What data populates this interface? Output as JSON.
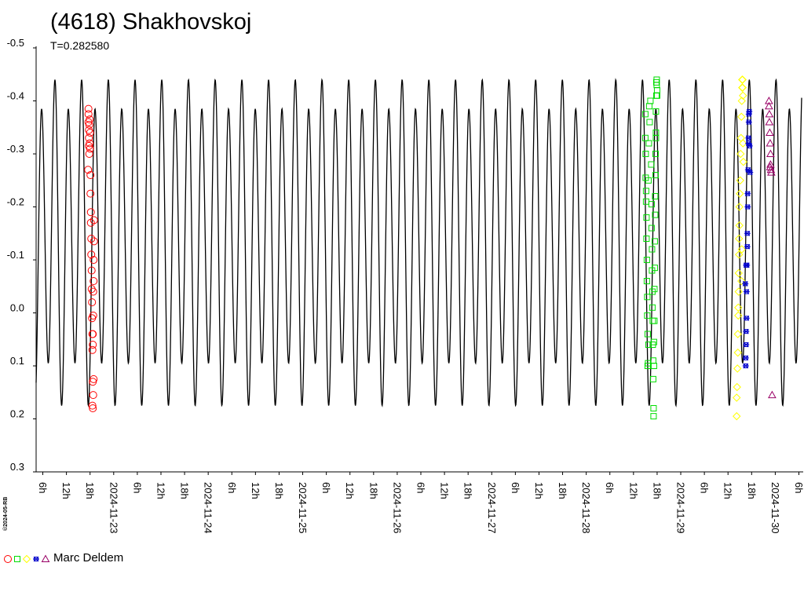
{
  "chart_data": {
    "type": "scatter",
    "title": "(4618) Shakhovskoj",
    "subtitle": "T=0.282580",
    "copyright": "©2024-05-RB",
    "period_days": 0.28258,
    "x_unit": "hours since 2024-11-22T00:00",
    "xlim": [
      4.3,
      198.7
    ],
    "ylim": [
      -0.5,
      0.3
    ],
    "y_inverted": true,
    "y_ticks": [
      {
        "v": -0.5,
        "label": "-0.5"
      },
      {
        "v": -0.4,
        "label": "-0.4"
      },
      {
        "v": -0.3,
        "label": "-0.3"
      },
      {
        "v": -0.2,
        "label": "-0.2"
      },
      {
        "v": -0.1,
        "label": "-0.1"
      },
      {
        "v": 0.0,
        "label": "0.0"
      },
      {
        "v": 0.1,
        "label": "0.1"
      },
      {
        "v": 0.2,
        "label": "0.2"
      },
      {
        "v": 0.3,
        "label": "0.3"
      }
    ],
    "x_ticks": [
      {
        "h": 6,
        "label": "6h"
      },
      {
        "h": 12,
        "label": "12h"
      },
      {
        "h": 18,
        "label": "18h"
      },
      {
        "h": 24,
        "label": "2024-11-23"
      },
      {
        "h": 30,
        "label": "6h"
      },
      {
        "h": 36,
        "label": "12h"
      },
      {
        "h": 42,
        "label": "18h"
      },
      {
        "h": 48,
        "label": "2024-11-24"
      },
      {
        "h": 54,
        "label": "6h"
      },
      {
        "h": 60,
        "label": "12h"
      },
      {
        "h": 66,
        "label": "18h"
      },
      {
        "h": 72,
        "label": "2024-11-25"
      },
      {
        "h": 78,
        "label": "6h"
      },
      {
        "h": 84,
        "label": "12h"
      },
      {
        "h": 90,
        "label": "18h"
      },
      {
        "h": 96,
        "label": "2024-11-26"
      },
      {
        "h": 102,
        "label": "6h"
      },
      {
        "h": 108,
        "label": "12h"
      },
      {
        "h": 114,
        "label": "18h"
      },
      {
        "h": 120,
        "label": "2024-11-27"
      },
      {
        "h": 126,
        "label": "6h"
      },
      {
        "h": 132,
        "label": "12h"
      },
      {
        "h": 138,
        "label": "18h"
      },
      {
        "h": 144,
        "label": "2024-11-28"
      },
      {
        "h": 150,
        "label": "6h"
      },
      {
        "h": 156,
        "label": "12h"
      },
      {
        "h": 162,
        "label": "18h"
      },
      {
        "h": 168,
        "label": "2024-11-29"
      },
      {
        "h": 174,
        "label": "6h"
      },
      {
        "h": 180,
        "label": "12h"
      },
      {
        "h": 186,
        "label": "18h"
      },
      {
        "h": 192,
        "label": "2024-11-30"
      },
      {
        "h": 198,
        "label": "6h"
      }
    ],
    "model_curve": {
      "color": "#000000",
      "maxima": [
        -0.44,
        -0.385
      ],
      "minima": [
        0.175,
        0.095
      ],
      "phase_offset_hours": 2.3
    },
    "series": [
      {
        "name": "",
        "color": "#ff0000",
        "marker": "circle",
        "points": [
          [
            17.6,
            -0.385
          ],
          [
            17.6,
            -0.375
          ],
          [
            17.6,
            -0.36
          ],
          [
            17.7,
            -0.345
          ],
          [
            17.7,
            -0.33
          ],
          [
            17.7,
            -0.315
          ],
          [
            17.8,
            -0.3
          ],
          [
            17.5,
            -0.27
          ],
          [
            17.8,
            -0.355
          ],
          [
            17.9,
            -0.32
          ],
          [
            17.9,
            -0.365
          ],
          [
            18.0,
            -0.34
          ],
          [
            18.0,
            -0.31
          ],
          [
            18.1,
            -0.26
          ],
          [
            18.1,
            -0.225
          ],
          [
            18.2,
            -0.19
          ],
          [
            18.2,
            -0.17
          ],
          [
            18.3,
            -0.14
          ],
          [
            18.3,
            -0.11
          ],
          [
            18.4,
            -0.08
          ],
          [
            18.4,
            -0.045
          ],
          [
            18.5,
            -0.02
          ],
          [
            18.5,
            0.01
          ],
          [
            18.6,
            0.04
          ],
          [
            18.6,
            0.07
          ],
          [
            18.7,
            0.06
          ],
          [
            18.7,
            0.04
          ],
          [
            18.8,
            0.005
          ],
          [
            18.8,
            -0.04
          ],
          [
            18.9,
            -0.06
          ],
          [
            18.9,
            -0.1
          ],
          [
            19.0,
            -0.135
          ],
          [
            19.0,
            -0.175
          ],
          [
            18.7,
            0.13
          ],
          [
            18.8,
            0.155
          ],
          [
            18.6,
            0.175
          ],
          [
            18.7,
            0.18
          ],
          [
            18.9,
            0.125
          ]
        ]
      },
      {
        "name": "",
        "color": "#00dd00",
        "marker": "square",
        "points": [
          [
            159.0,
            -0.375
          ],
          [
            159.0,
            -0.33
          ],
          [
            159.1,
            -0.3
          ],
          [
            159.1,
            -0.255
          ],
          [
            159.2,
            -0.23
          ],
          [
            159.2,
            -0.21
          ],
          [
            159.3,
            -0.18
          ],
          [
            159.3,
            -0.14
          ],
          [
            159.4,
            -0.1
          ],
          [
            159.4,
            -0.06
          ],
          [
            159.5,
            -0.03
          ],
          [
            159.5,
            0.005
          ],
          [
            159.6,
            0.04
          ],
          [
            159.6,
            0.1
          ],
          [
            159.7,
            0.095
          ],
          [
            159.8,
            0.06
          ],
          [
            159.8,
            -0.25
          ],
          [
            159.9,
            -0.32
          ],
          [
            160.0,
            -0.39
          ],
          [
            160.1,
            -0.36
          ],
          [
            160.3,
            -0.4
          ],
          [
            160.5,
            -0.28
          ],
          [
            160.6,
            -0.205
          ],
          [
            160.6,
            -0.16
          ],
          [
            160.7,
            -0.12
          ],
          [
            160.7,
            -0.08
          ],
          [
            160.8,
            -0.04
          ],
          [
            160.8,
            -0.01
          ],
          [
            160.9,
            0.015
          ],
          [
            160.9,
            0.06
          ],
          [
            161.0,
            0.09
          ],
          [
            161.0,
            0.125
          ],
          [
            161.1,
            0.18
          ],
          [
            161.1,
            0.195
          ],
          [
            161.2,
            0.1
          ],
          [
            161.2,
            0.055
          ],
          [
            161.3,
            0.015
          ],
          [
            161.3,
            -0.045
          ],
          [
            161.4,
            -0.085
          ],
          [
            161.4,
            -0.135
          ],
          [
            161.5,
            -0.185
          ],
          [
            161.5,
            -0.22
          ],
          [
            161.6,
            -0.26
          ],
          [
            161.6,
            -0.3
          ],
          [
            161.7,
            -0.34
          ],
          [
            161.7,
            -0.38
          ],
          [
            161.8,
            -0.41
          ],
          [
            161.8,
            -0.435
          ],
          [
            161.9,
            -0.44
          ],
          [
            161.9,
            -0.43
          ],
          [
            162.0,
            -0.42
          ],
          [
            162.0,
            -0.41
          ],
          [
            161.7,
            -0.33
          ]
        ]
      },
      {
        "name": "",
        "color": "#ffff00",
        "marker": "diamond",
        "points": [
          [
            182.2,
            0.195
          ],
          [
            182.2,
            0.16
          ],
          [
            182.3,
            0.14
          ],
          [
            182.4,
            0.105
          ],
          [
            182.5,
            0.075
          ],
          [
            182.5,
            0.04
          ],
          [
            182.6,
            0.005
          ],
          [
            182.6,
            -0.01
          ],
          [
            182.7,
            -0.04
          ],
          [
            182.7,
            -0.075
          ],
          [
            182.8,
            -0.11
          ],
          [
            182.8,
            -0.14
          ],
          [
            182.9,
            -0.165
          ],
          [
            182.9,
            -0.2
          ],
          [
            183.0,
            -0.225
          ],
          [
            183.1,
            -0.25
          ],
          [
            183.2,
            -0.3
          ],
          [
            183.3,
            -0.33
          ],
          [
            183.4,
            -0.37
          ],
          [
            183.5,
            -0.4
          ],
          [
            183.6,
            -0.425
          ],
          [
            183.6,
            -0.44
          ],
          [
            183.7,
            -0.44
          ],
          [
            183.7,
            -0.425
          ],
          [
            183.8,
            -0.41
          ],
          [
            183.8,
            -0.32
          ],
          [
            183.9,
            -0.285
          ],
          [
            183.5,
            -0.12
          ],
          [
            183.4,
            -0.06
          ]
        ]
      },
      {
        "name": "",
        "color": "#0000cc",
        "marker": "star",
        "points": [
          [
            184.5,
            0.1
          ],
          [
            184.5,
            0.085
          ],
          [
            184.6,
            0.06
          ],
          [
            184.6,
            0.035
          ],
          [
            184.7,
            0.01
          ],
          [
            184.7,
            -0.04
          ],
          [
            184.8,
            -0.09
          ],
          [
            184.9,
            -0.125
          ],
          [
            184.9,
            -0.15
          ],
          [
            185.0,
            -0.2
          ],
          [
            185.0,
            -0.225
          ],
          [
            185.1,
            -0.27
          ],
          [
            185.2,
            -0.32
          ],
          [
            185.2,
            -0.33
          ],
          [
            185.3,
            -0.36
          ],
          [
            185.3,
            -0.375
          ],
          [
            185.4,
            -0.38
          ],
          [
            185.5,
            -0.315
          ],
          [
            185.6,
            -0.265
          ],
          [
            184.6,
            -0.09
          ],
          [
            184.4,
            -0.055
          ]
        ]
      },
      {
        "name": "",
        "color": "#990066",
        "marker": "triangle",
        "points": [
          [
            190.4,
            -0.4
          ],
          [
            190.4,
            -0.39
          ],
          [
            190.5,
            -0.375
          ],
          [
            190.5,
            -0.36
          ],
          [
            190.6,
            -0.34
          ],
          [
            190.7,
            -0.32
          ],
          [
            190.8,
            -0.3
          ],
          [
            190.8,
            -0.28
          ],
          [
            190.9,
            -0.27
          ],
          [
            191.0,
            -0.265
          ],
          [
            190.7,
            -0.275
          ],
          [
            191.2,
            0.155
          ]
        ]
      }
    ]
  },
  "legend": {
    "label": "Marc Deldem"
  }
}
